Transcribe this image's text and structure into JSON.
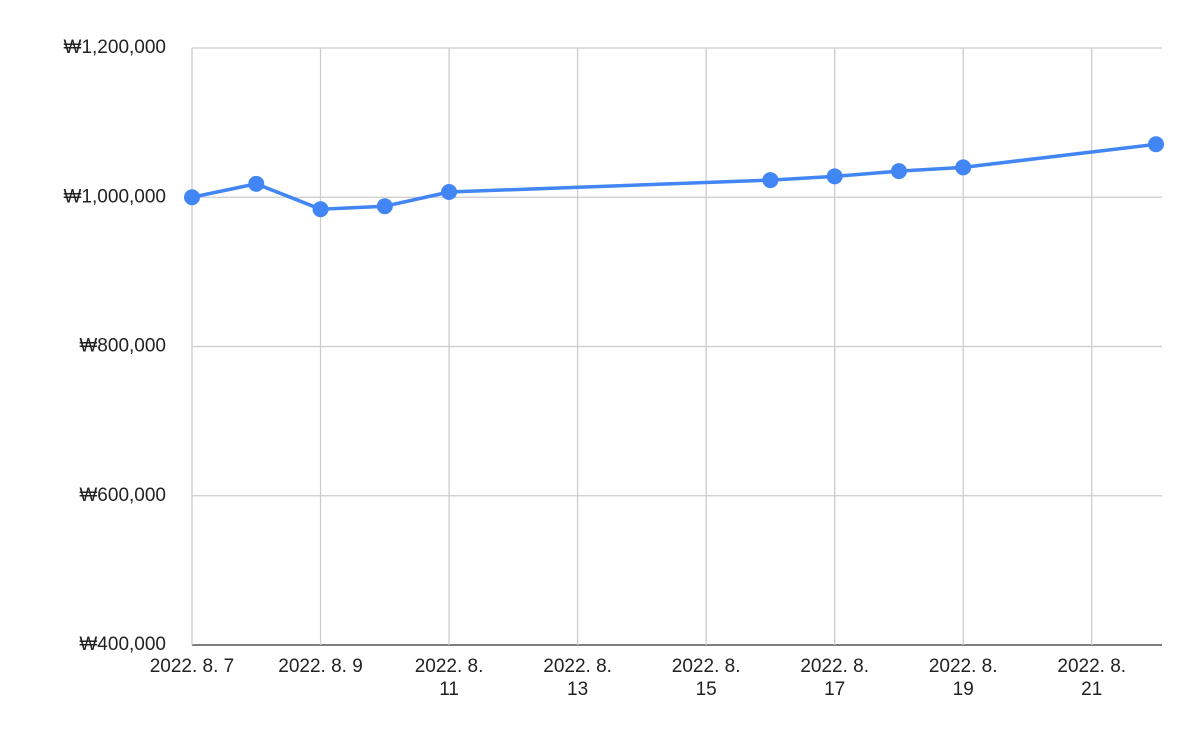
{
  "chart_data": {
    "type": "line",
    "x": [
      "2022-08-07",
      "2022-08-08",
      "2022-08-09",
      "2022-08-10",
      "2022-08-11",
      "2022-08-16",
      "2022-08-17",
      "2022-08-18",
      "2022-08-19",
      "2022-08-22"
    ],
    "series": [
      {
        "color": "#4285f4",
        "values": [
          1000000,
          1018000,
          984000,
          988000,
          1007000,
          1023000,
          1028000,
          1035000,
          1040000,
          1071000
        ]
      }
    ],
    "xlim": [
      "2022-08-07",
      "2022-08-22"
    ],
    "xticks": [
      {
        "value": "2022-08-07",
        "label": "2022. 8. 7"
      },
      {
        "value": "2022-08-09",
        "label": "2022. 8. 9"
      },
      {
        "value": "2022-08-11",
        "label": "2022. 8. 11"
      },
      {
        "value": "2022-08-13",
        "label": "2022. 8. 13"
      },
      {
        "value": "2022-08-15",
        "label": "2022. 8. 15"
      },
      {
        "value": "2022-08-17",
        "label": "2022. 8. 17"
      },
      {
        "value": "2022-08-19",
        "label": "2022. 8. 19"
      },
      {
        "value": "2022-08-21",
        "label": "2022. 8. 21"
      }
    ],
    "ylim": [
      400000,
      1200000
    ],
    "yticks": [
      {
        "value": 400000,
        "label": "₩400,000"
      },
      {
        "value": 600000,
        "label": "₩600,000"
      },
      {
        "value": 800000,
        "label": "₩800,000"
      },
      {
        "value": 1000000,
        "label": "₩1,000,000"
      },
      {
        "value": 1200000,
        "label": "₩1,200,000"
      }
    ],
    "grid": true
  }
}
